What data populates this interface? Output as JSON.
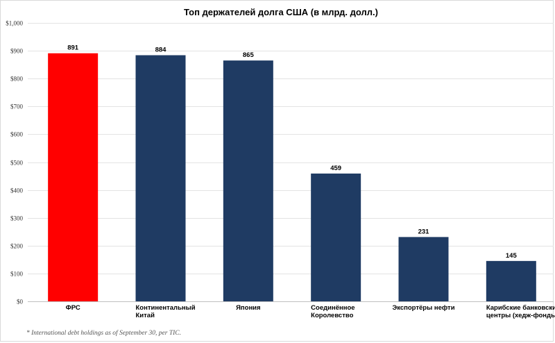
{
  "chart_data": {
    "type": "bar",
    "title": "Топ держателей долга США (в млрд. долл.)",
    "categories": [
      [
        "ФРС"
      ],
      [
        "Континентальный",
        "Китай"
      ],
      [
        "Япония"
      ],
      [
        "Соединённое",
        "Королевство"
      ],
      [
        "Экспортёры нефти"
      ],
      [
        "Карибские банковские",
        "центры (хедж-фонды)"
      ]
    ],
    "values": [
      891,
      884,
      865,
      459,
      231,
      145
    ],
    "value_labels": [
      "891",
      "884",
      "865",
      "459",
      "231",
      "145"
    ],
    "bar_colors": [
      "#ff0000",
      "#1f3b63",
      "#1f3b63",
      "#1f3b63",
      "#1f3b63",
      "#1f3b63"
    ],
    "ylim": [
      0,
      1000
    ],
    "ytick_values": [
      0,
      100,
      200,
      300,
      400,
      500,
      600,
      700,
      800,
      900,
      1000
    ],
    "ytick_labels": [
      "$0",
      "$100",
      "$200",
      "$300",
      "$400",
      "$500",
      "$600",
      "$700",
      "$800",
      "$900",
      "$1,000"
    ],
    "xlabel": "",
    "ylabel": "",
    "grid": true,
    "legend": "none",
    "footnote": "* International debt holdings as of September 30, per TIC."
  }
}
